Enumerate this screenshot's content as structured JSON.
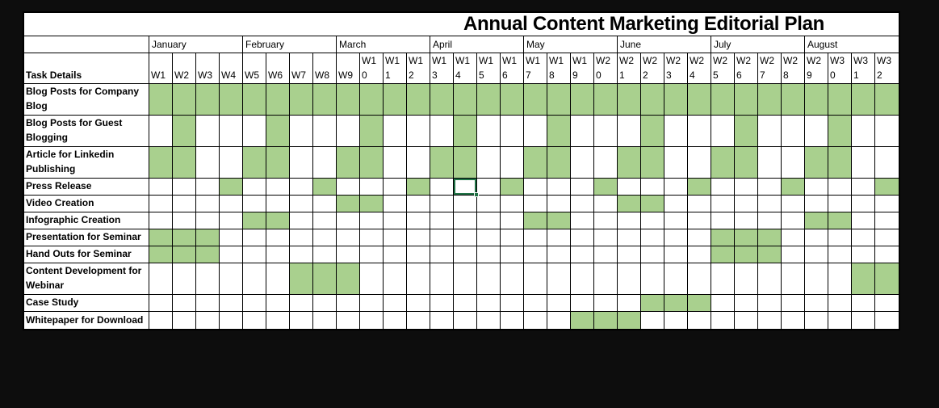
{
  "window": {
    "background_color": "#0d0d0d"
  },
  "table": {
    "title": "Annual Content Marketing Editorial Plan",
    "corner_label": "Task Details",
    "months": [
      "January",
      "February",
      "March",
      "April",
      "May",
      "June",
      "July",
      "August"
    ],
    "weeks_per_month": 4,
    "week_labels": [
      "W1",
      "W2",
      "W3",
      "W4",
      "W5",
      "W6",
      "W7",
      "W8",
      "W9",
      "W10",
      "W11",
      "W12",
      "W13",
      "W14",
      "W15",
      "W16",
      "W17",
      "W18",
      "W19",
      "W20",
      "W21",
      "W22",
      "W23",
      "W24",
      "W25",
      "W26",
      "W27",
      "W28",
      "W29",
      "W30",
      "W31",
      "W32"
    ],
    "tasks": [
      {
        "label": "Blog Posts for Company Blog",
        "filled_weeks": [
          1,
          2,
          3,
          4,
          5,
          6,
          7,
          8,
          9,
          10,
          11,
          12,
          13,
          14,
          15,
          16,
          17,
          18,
          19,
          20,
          21,
          22,
          23,
          24,
          25,
          26,
          27,
          28,
          29,
          30,
          31,
          32
        ]
      },
      {
        "label": "Blog Posts for Guest Blogging",
        "filled_weeks": [
          2,
          6,
          10,
          14,
          18,
          22,
          26,
          30
        ]
      },
      {
        "label": "Article for Linkedin Publishing",
        "filled_weeks": [
          1,
          2,
          5,
          6,
          9,
          10,
          13,
          14,
          17,
          18,
          21,
          22,
          25,
          26,
          29,
          30
        ]
      },
      {
        "label": "Press Release",
        "filled_weeks": [
          4,
          8,
          12,
          16,
          20,
          24,
          28,
          32
        ]
      },
      {
        "label": "Video Creation",
        "filled_weeks": [
          9,
          10,
          21,
          22
        ]
      },
      {
        "label": "Infographic Creation",
        "filled_weeks": [
          5,
          6,
          17,
          18,
          29,
          30
        ]
      },
      {
        "label": "Presentation for Seminar",
        "filled_weeks": [
          1,
          2,
          3,
          25,
          26,
          27
        ]
      },
      {
        "label": "Hand Outs for Seminar",
        "filled_weeks": [
          1,
          2,
          3,
          25,
          26,
          27
        ]
      },
      {
        "label": "Content Development for Webinar",
        "filled_weeks": [
          7,
          8,
          9,
          31,
          32
        ]
      },
      {
        "label": "Case Study",
        "filled_weeks": [
          22,
          23,
          24
        ]
      },
      {
        "label": "Whitepaper for Download",
        "filled_weeks": [
          19,
          20,
          21
        ]
      }
    ],
    "selection": {
      "task_label": "Press Release",
      "week_label": "W14"
    },
    "colors": {
      "cell_fill_green": "#a9d08e",
      "selection_border_green": "#217346",
      "grid_line": "#000000",
      "table_background": "#ffffff",
      "text": "#000000"
    }
  }
}
